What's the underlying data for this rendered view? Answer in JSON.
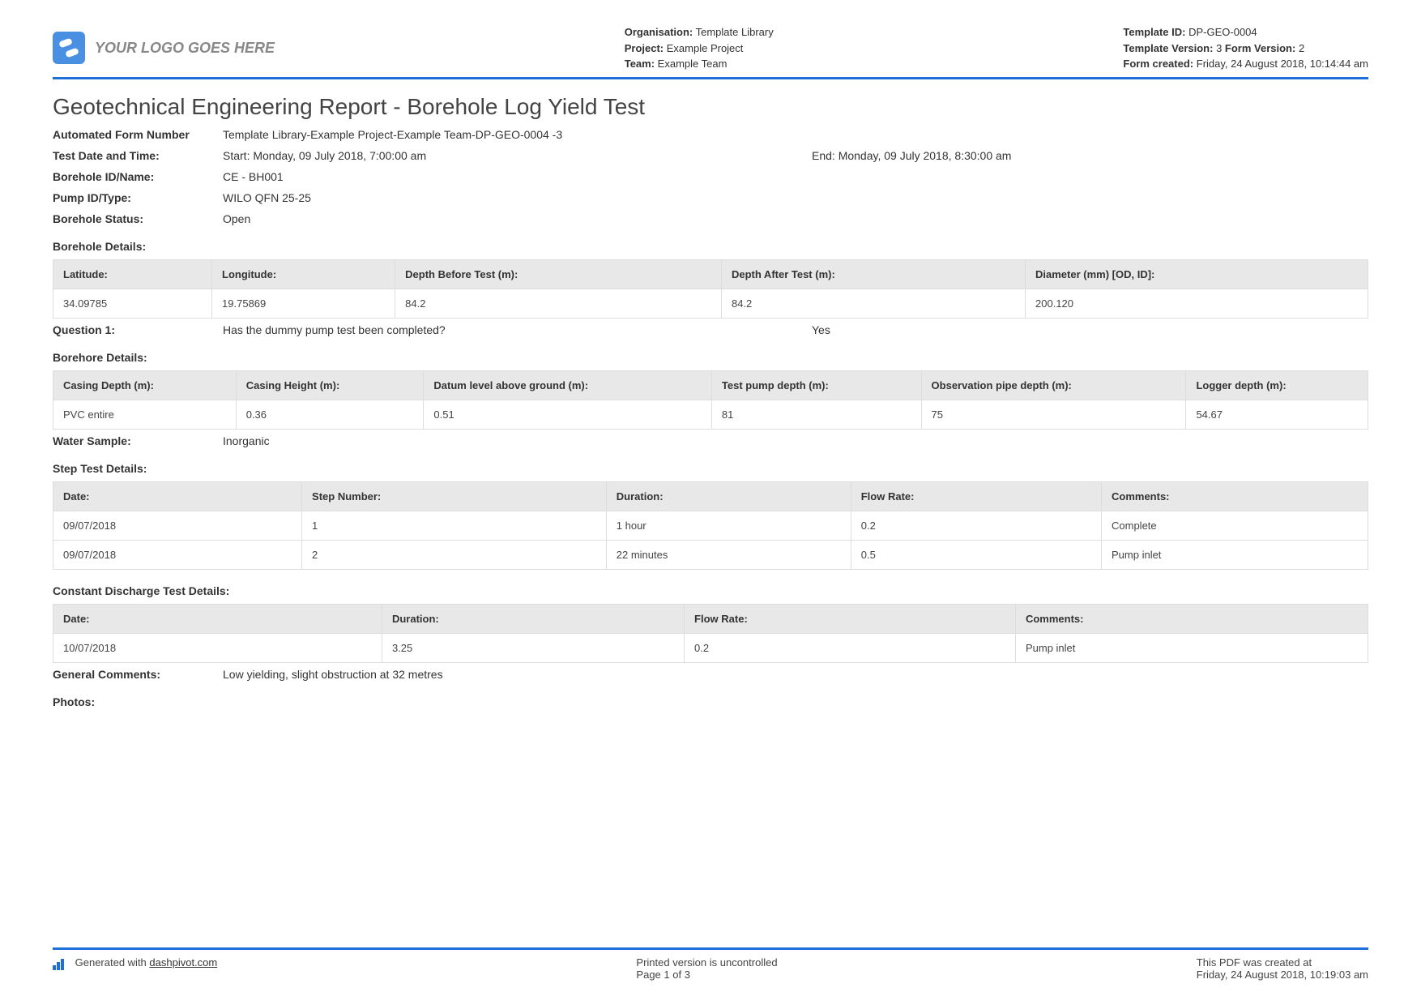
{
  "logo_text": "YOUR LOGO GOES HERE",
  "header_mid": {
    "org_label": "Organisation:",
    "org": "Template Library",
    "proj_label": "Project:",
    "proj": "Example Project",
    "team_label": "Team:",
    "team": "Example Team"
  },
  "header_right": {
    "tid_label": "Template ID:",
    "tid": "DP-GEO-0004",
    "tv_label": "Template Version:",
    "tv": "3",
    "fv_label": "Form Version:",
    "fv": "2",
    "fc_label": "Form created:",
    "fc": "Friday, 24 August 2018, 10:14:44 am"
  },
  "title": "Geotechnical Engineering Report - Borehole Log Yield Test",
  "fields": {
    "afn_label": "Automated Form Number",
    "afn": "Template Library-Example Project-Example Team-DP-GEO-0004   -3",
    "tdt_label": "Test Date and Time:",
    "tdt_start": "Start: Monday, 09 July 2018, 7:00:00 am",
    "tdt_end": "End: Monday, 09 July 2018, 8:30:00 am",
    "bid_label": "Borehole ID/Name:",
    "bid": "CE - BH001",
    "pid_label": "Pump ID/Type:",
    "pid": "WILO QFN 25-25",
    "bs_label": "Borehole Status:",
    "bs": "Open"
  },
  "borehole_details_title": "Borehole Details:",
  "borehole_table": {
    "headers": [
      "Latitude:",
      "Longitude:",
      "Depth Before Test (m):",
      "Depth After Test (m):",
      "Diameter (mm) [OD, ID]:"
    ],
    "row": [
      "34.09785",
      "19.75869",
      "84.2",
      "84.2",
      "200.120"
    ]
  },
  "q1_label": "Question 1:",
  "q1_text": "Has the dummy pump test been completed?",
  "q1_ans": "Yes",
  "borehore_details_title": "Borehore Details:",
  "borehore_table": {
    "headers": [
      "Casing Depth (m):",
      "Casing Height (m):",
      "Datum level above ground (m):",
      "Test pump depth (m):",
      "Observation pipe depth (m):",
      "Logger depth (m):"
    ],
    "row": [
      "PVC entire",
      "0.36",
      "0.51",
      "81",
      "75",
      "54.67"
    ]
  },
  "ws_label": "Water Sample:",
  "ws": "Inorganic",
  "step_title": "Step Test Details:",
  "step_table": {
    "headers": [
      "Date:",
      "Step Number:",
      "Duration:",
      "Flow Rate:",
      "Comments:"
    ],
    "rows": [
      [
        "09/07/2018",
        "1",
        "1 hour",
        "0.2",
        "Complete"
      ],
      [
        "09/07/2018",
        "2",
        "22 minutes",
        "0.5",
        "Pump inlet"
      ]
    ]
  },
  "cdt_title": "Constant Discharge Test Details:",
  "cdt_table": {
    "headers": [
      "Date:",
      "Duration:",
      "Flow Rate:",
      "Comments:"
    ],
    "row": [
      "10/07/2018",
      "3.25",
      "0.2",
      "Pump inlet"
    ]
  },
  "gc_label": "General Comments:",
  "gc": "Low yielding, slight obstruction at 32 metres",
  "photos_label": "Photos:",
  "footer": {
    "gen_prefix": "Generated with ",
    "gen_link": "dashpivot.com",
    "printed": "Printed version is uncontrolled",
    "page": "Page 1 of 3",
    "created_label": "This PDF was created at",
    "created": "Friday, 24 August 2018, 10:19:03 am"
  }
}
